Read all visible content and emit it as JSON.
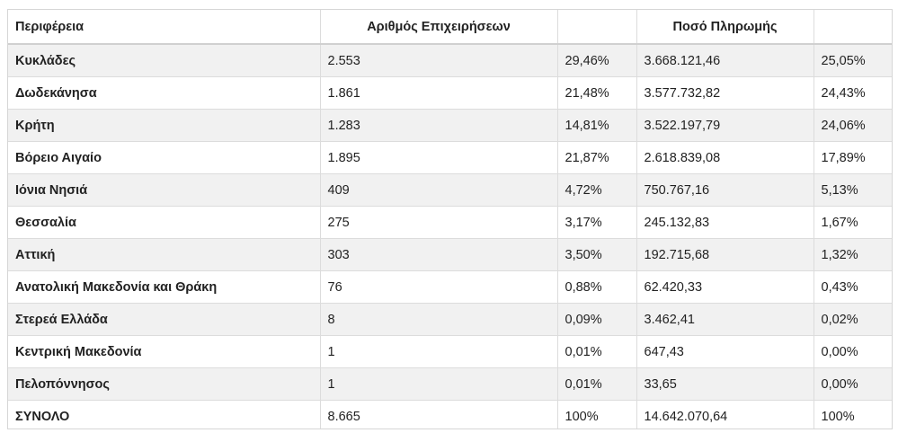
{
  "table": {
    "headers": [
      "Περιφέρεια",
      "Αριθμός Επιχειρήσεων",
      "",
      "Ποσό Πληρωμής",
      ""
    ],
    "rows": [
      {
        "region": "Κυκλάδες",
        "count": "2.553",
        "count_pct": "29,46%",
        "amount": "3.668.121,46",
        "amount_pct": "25,05%"
      },
      {
        "region": "Δωδεκάνησα",
        "count": "1.861",
        "count_pct": "21,48%",
        "amount": "3.577.732,82",
        "amount_pct": "24,43%"
      },
      {
        "region": "Κρήτη",
        "count": "1.283",
        "count_pct": "14,81%",
        "amount": "3.522.197,79",
        "amount_pct": "24,06%"
      },
      {
        "region": "Βόρειο Αιγαίο",
        "count": "1.895",
        "count_pct": "21,87%",
        "amount": "2.618.839,08",
        "amount_pct": "17,89%"
      },
      {
        "region": "Ιόνια Νησιά",
        "count": "409",
        "count_pct": "4,72%",
        "amount": "750.767,16",
        "amount_pct": "5,13%"
      },
      {
        "region": "Θεσσαλία",
        "count": "275",
        "count_pct": "3,17%",
        "amount": "245.132,83",
        "amount_pct": "1,67%"
      },
      {
        "region": "Αττική",
        "count": "303",
        "count_pct": "3,50%",
        "amount": "192.715,68",
        "amount_pct": "1,32%"
      },
      {
        "region": "Ανατολική Μακεδονία και Θράκη",
        "count": "76",
        "count_pct": "0,88%",
        "amount": "62.420,33",
        "amount_pct": "0,43%"
      },
      {
        "region": "Στερεά Ελλάδα",
        "count": "8",
        "count_pct": "0,09%",
        "amount": "3.462,41",
        "amount_pct": "0,02%"
      },
      {
        "region": "Κεντρική Μακεδονία",
        "count": "1",
        "count_pct": "0,01%",
        "amount": "647,43",
        "amount_pct": "0,00%"
      },
      {
        "region": "Πελοπόννησος",
        "count": "1",
        "count_pct": "0,01%",
        "amount": "33,65",
        "amount_pct": "0,00%"
      },
      {
        "region": "ΣΥΝΟΛΟ",
        "count": "8.665",
        "count_pct": "100%",
        "amount": "14.642.070,64",
        "amount_pct": "100%"
      }
    ]
  }
}
